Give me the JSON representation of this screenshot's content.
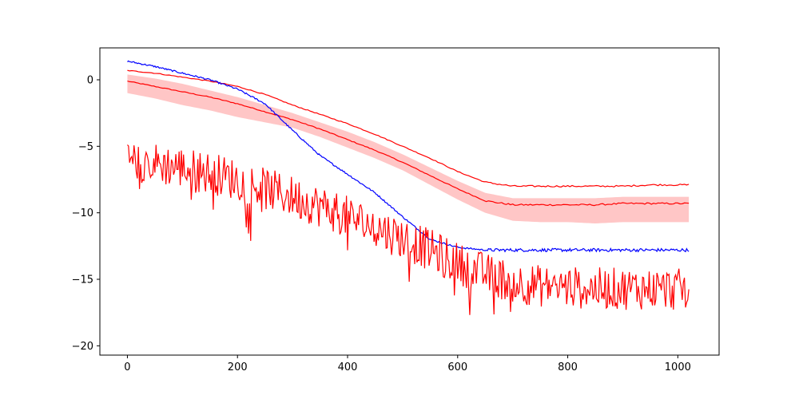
{
  "chart_data": {
    "type": "line",
    "title": "",
    "xlabel": "",
    "ylabel": "",
    "xlim": [
      -50,
      1075
    ],
    "ylim": [
      -20.7,
      2.4
    ],
    "x_ticks": [
      0,
      200,
      400,
      600,
      800,
      1000
    ],
    "y_ticks": [
      0,
      -5,
      -10,
      -15,
      -20
    ],
    "x_tick_labels": [
      "0",
      "200",
      "400",
      "600",
      "800",
      "1000"
    ],
    "y_tick_labels": [
      "0",
      "−5",
      "−10",
      "−15",
      "−20"
    ],
    "grid": false,
    "legend": "none",
    "series": [
      {
        "kind": "band",
        "color": "#ffc0c0",
        "x": [
          0,
          50,
          100,
          150,
          200,
          250,
          300,
          350,
          400,
          450,
          500,
          550,
          600,
          650,
          700,
          750,
          800,
          850,
          900,
          950,
          1020
        ],
        "upper": [
          0.4,
          0.1,
          -0.3,
          -0.8,
          -1.3,
          -1.9,
          -2.5,
          -3.2,
          -3.9,
          -4.7,
          -5.6,
          -6.6,
          -7.6,
          -8.5,
          -8.9,
          -8.9,
          -8.9,
          -8.9,
          -8.8,
          -8.8,
          -8.8
        ],
        "lower": [
          -1.0,
          -1.4,
          -1.9,
          -2.3,
          -2.8,
          -3.2,
          -3.6,
          -4.3,
          -5.1,
          -5.9,
          -6.8,
          -7.9,
          -9.0,
          -10.0,
          -10.6,
          -10.7,
          -10.7,
          -10.8,
          -10.7,
          -10.7,
          -10.7
        ]
      },
      {
        "kind": "line",
        "color": "#ff0000",
        "x": [
          0,
          50,
          100,
          150,
          200,
          250,
          300,
          350,
          400,
          450,
          500,
          550,
          600,
          650,
          700,
          750,
          800,
          850,
          900,
          950,
          1020
        ],
        "values": [
          -0.1,
          -0.5,
          -0.9,
          -1.3,
          -1.8,
          -2.4,
          -3.0,
          -3.7,
          -4.5,
          -5.3,
          -6.2,
          -7.2,
          -8.2,
          -9.1,
          -9.4,
          -9.4,
          -9.4,
          -9.4,
          -9.3,
          -9.3,
          -9.3
        ]
      },
      {
        "kind": "line",
        "color": "#ff0000",
        "x": [
          0,
          50,
          100,
          150,
          200,
          250,
          300,
          350,
          400,
          450,
          500,
          550,
          600,
          650,
          700,
          750,
          800,
          850,
          900,
          950,
          1020
        ],
        "values": [
          0.7,
          0.5,
          0.2,
          -0.1,
          -0.5,
          -1.1,
          -1.9,
          -2.6,
          -3.3,
          -4.1,
          -5.0,
          -5.9,
          -6.9,
          -7.7,
          -8.0,
          -8.0,
          -8.0,
          -8.0,
          -8.0,
          -7.9,
          -7.9
        ]
      },
      {
        "kind": "line",
        "color": "#0000ff",
        "x": [
          0,
          50,
          100,
          150,
          200,
          250,
          300,
          350,
          400,
          450,
          500,
          550,
          600,
          650,
          700,
          750,
          800,
          850,
          900,
          950,
          1020
        ],
        "values": [
          1.4,
          1.0,
          0.5,
          0.0,
          -0.7,
          -1.8,
          -3.8,
          -5.7,
          -7.1,
          -8.5,
          -10.3,
          -12.0,
          -12.6,
          -12.8,
          -12.8,
          -12.8,
          -12.8,
          -12.8,
          -12.8,
          -12.8,
          -12.8
        ]
      },
      {
        "kind": "noisy",
        "color": "#ff0000",
        "x": [
          0,
          50,
          100,
          150,
          200,
          250,
          300,
          350,
          400,
          450,
          500,
          550,
          600,
          650,
          700,
          750,
          800,
          850,
          900,
          950,
          1020
        ],
        "values": [
          -6.0,
          -6.3,
          -6.6,
          -7.0,
          -7.5,
          -8.2,
          -8.8,
          -9.5,
          -10.3,
          -11.1,
          -11.9,
          -12.8,
          -13.8,
          -14.6,
          -15.2,
          -15.5,
          -15.6,
          -15.7,
          -15.7,
          -15.7,
          -15.8
        ]
      }
    ]
  }
}
